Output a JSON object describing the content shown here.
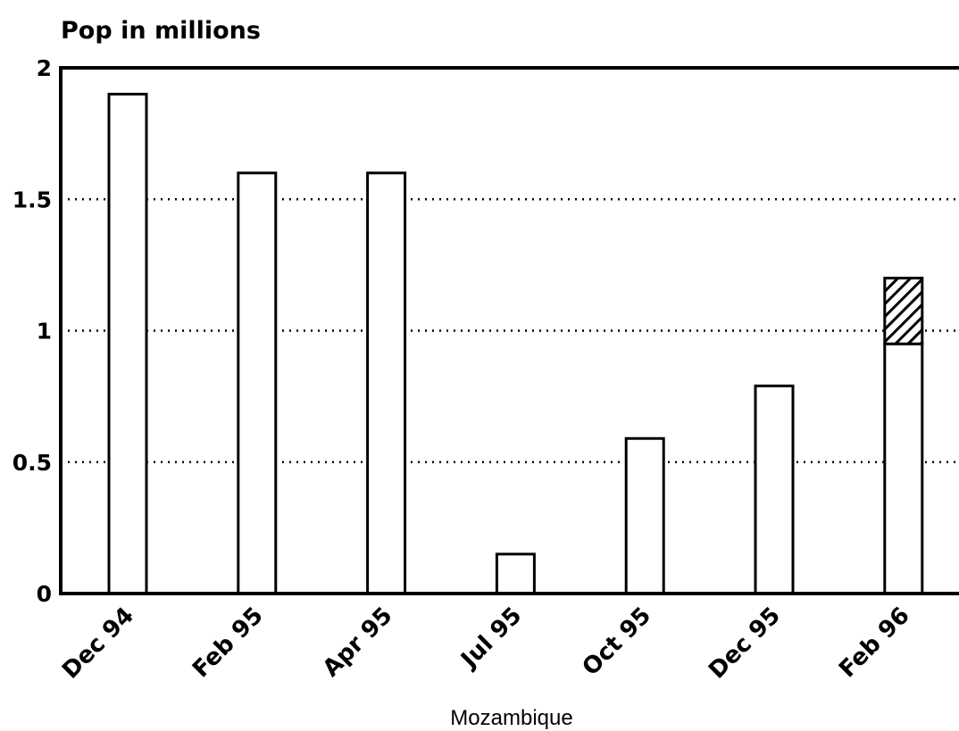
{
  "chart_data": {
    "type": "bar",
    "ylabel": "Pop in millions",
    "xlabel": "Mozambique",
    "categories": [
      "Dec 94",
      "Feb 95",
      "Apr 95",
      "Jul 95",
      "Oct 95",
      "Dec 95",
      "Feb 96"
    ],
    "series": [
      {
        "values": [
          1.9,
          1.6,
          1.6,
          0.15,
          0.59,
          0.79,
          0.95
        ]
      },
      {
        "values": [
          0,
          0,
          0,
          0,
          0,
          0,
          0.25
        ]
      }
    ],
    "ylim": [
      0,
      2
    ],
    "yticks": [
      0,
      0.5,
      1,
      1.5,
      2
    ],
    "ytick_labels": [
      "0",
      "0.5",
      "1",
      "1.5",
      "2"
    ],
    "grid": "horizontal-dotted",
    "colors": {
      "bar_fill": "#ffffff",
      "bar_stroke": "#000000",
      "hatch": "#000000"
    }
  }
}
